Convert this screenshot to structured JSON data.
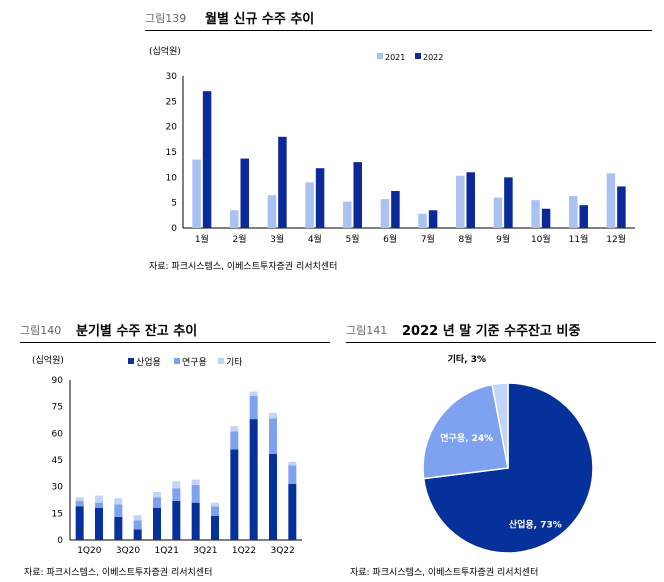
{
  "colors": {
    "light": "#a9c2f2",
    "dark": "#0a2a9a",
    "mid": "#6b93e6",
    "pale": "#cddcf8",
    "industrial": "#06309a",
    "research": "#7ea2ef",
    "other": "#c2d4f7"
  },
  "panel1": {
    "fig_label": "그림139",
    "title": "월별 신규 수주 추이",
    "unit": "(십억원)",
    "source": "자료: 파크시스템스, 이베스트투자증권 리서치센터"
  },
  "panel2": {
    "fig_label": "그림140",
    "title": "분기별 수주 잔고 추이",
    "unit": "(십억원)",
    "source": "자료: 파크시스템스, 이베스트투자증권 리서치센터"
  },
  "panel3": {
    "fig_label": "그림141",
    "title": "2022 년 말 기준 수주잔고 비중",
    "source": "자료: 파크시스템스, 이베스트투자증권 리서치센터"
  },
  "chart_data": [
    {
      "type": "bar",
      "categories": [
        "1월",
        "2월",
        "3월",
        "4월",
        "5월",
        "6월",
        "7월",
        "8월",
        "9월",
        "10월",
        "11월",
        "12월"
      ],
      "series": [
        {
          "name": "2021",
          "values": [
            13.5,
            3.5,
            6.5,
            9,
            5.2,
            5.7,
            2.8,
            10.3,
            6,
            5.5,
            6.3,
            10.8
          ]
        },
        {
          "name": "2022",
          "values": [
            27,
            13.7,
            18,
            11.8,
            13,
            7.3,
            3.5,
            11,
            10,
            3.8,
            4.5,
            8.2
          ]
        }
      ],
      "yticks": [
        "0",
        "5",
        "10",
        "15",
        "20",
        "25",
        "30"
      ],
      "ylim": [
        0,
        30
      ],
      "ylabel": "(십억원)",
      "legend": "top-right",
      "grid": false
    },
    {
      "type": "bar",
      "stacked": true,
      "categories": [
        "1Q20",
        "2Q20",
        "3Q20",
        "4Q20",
        "1Q21",
        "2Q21",
        "3Q21",
        "4Q21",
        "1Q22",
        "2Q22",
        "3Q22",
        "4Q22"
      ],
      "xticks": [
        "1Q20",
        "3Q20",
        "1Q21",
        "3Q21",
        "1Q22",
        "3Q22"
      ],
      "series": [
        {
          "name": "산업용",
          "values": [
            19,
            18,
            13,
            6,
            18,
            22,
            21,
            13.5,
            51,
            68,
            48.5,
            31.5
          ]
        },
        {
          "name": "연구용",
          "values": [
            3,
            3,
            7,
            5,
            6,
            7,
            10,
            5.5,
            10,
            13,
            20,
            10.5
          ]
        },
        {
          "name": "기타",
          "values": [
            2,
            4,
            3.5,
            3,
            3,
            4,
            3,
            2,
            3,
            2.5,
            3,
            2
          ]
        }
      ],
      "yticks": [
        "0",
        "15",
        "30",
        "45",
        "60",
        "75",
        "90"
      ],
      "ylim": [
        0,
        90
      ],
      "ylabel": "(십억원)",
      "legend": "top-center",
      "grid": false
    },
    {
      "type": "pie",
      "slices": [
        {
          "name": "산업용",
          "value": 73,
          "label": "산업용, 73%"
        },
        {
          "name": "연구용",
          "value": 24,
          "label": "연구용, 24%"
        },
        {
          "name": "기타",
          "value": 3,
          "label": "기타, 3%"
        }
      ]
    }
  ]
}
